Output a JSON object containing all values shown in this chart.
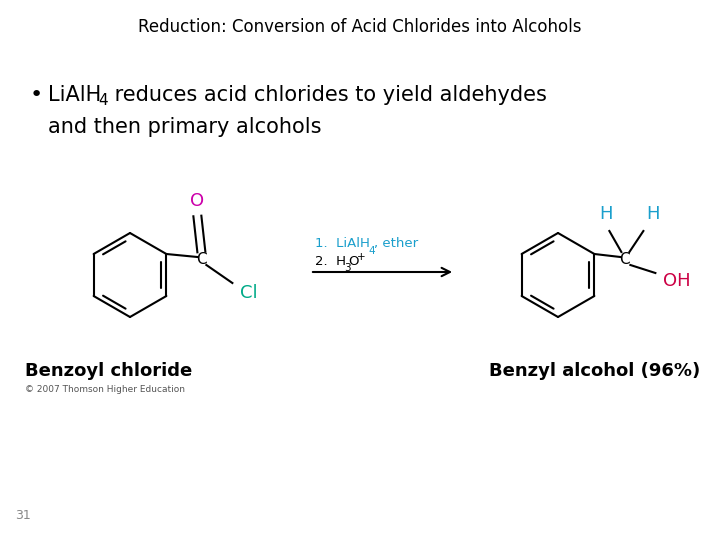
{
  "title": "Reduction: Conversion of Acid Chlorides into Alcohols",
  "title_fontsize": 12,
  "title_color": "#000000",
  "bullet_fontsize": 15,
  "page_num": "31",
  "background_color": "#ffffff",
  "copyright_text": "© 2007 Thomson Higher Education",
  "label_left": "Benzoyl chloride",
  "label_right": "Benzyl alcohol (96%)",
  "label_fontsize": 13,
  "reagent_color": "#1a9fcc",
  "magenta": "#cc00aa",
  "cyan": "#1a9fcc",
  "teal": "#00aa88",
  "oh_color": "#cc0044",
  "black": "#000000"
}
